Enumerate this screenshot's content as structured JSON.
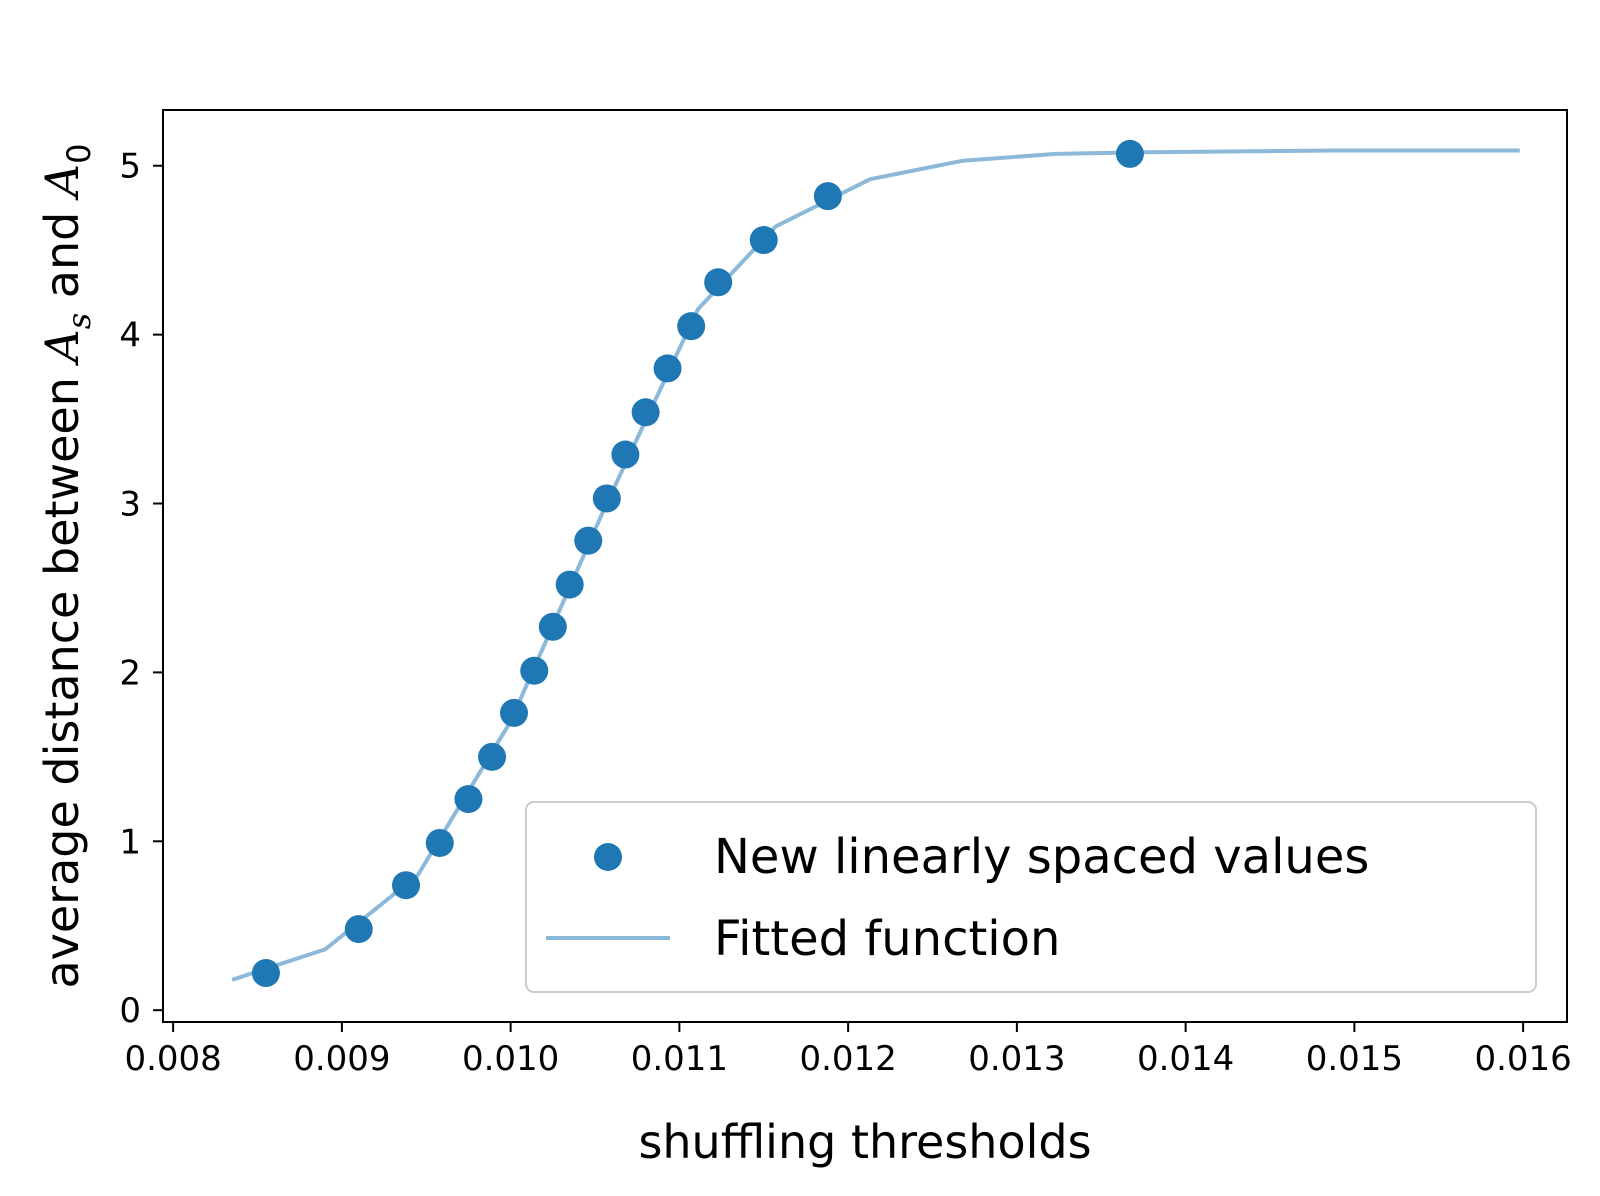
{
  "chart_data": {
    "type": "scatter",
    "xlabel": "shuffling thresholds",
    "ylabel": {
      "prefix": "average distance between ",
      "var1": "A",
      "sub1": "s",
      "middle": " and ",
      "var2": "A",
      "sub2": "0"
    },
    "xlim": [
      0.00794,
      0.01626
    ],
    "ylim": [
      -0.07,
      5.33
    ],
    "xticks": [
      0.008,
      0.009,
      0.01,
      0.011,
      0.012,
      0.013,
      0.014,
      0.015,
      0.016
    ],
    "xtick_labels": [
      "0.008",
      "0.009",
      "0.010",
      "0.011",
      "0.012",
      "0.013",
      "0.014",
      "0.015",
      "0.016"
    ],
    "yticks": [
      0,
      1,
      2,
      3,
      4,
      5
    ],
    "ytick_labels": [
      "0",
      "1",
      "2",
      "3",
      "4",
      "5"
    ],
    "grid": false,
    "legend_position": "lower-right",
    "colors": {
      "points": "#1f77b4",
      "line": "#8cb8d9",
      "axes": "#000000",
      "legend_border": "#cccccc"
    },
    "series": [
      {
        "name": "New linearly spaced values",
        "kind": "scatter",
        "x": [
          0.00855,
          0.0091,
          0.00938,
          0.00958,
          0.00975,
          0.00989,
          0.01002,
          0.01014,
          0.01025,
          0.01035,
          0.01046,
          0.01057,
          0.01068,
          0.0108,
          0.01093,
          0.01107,
          0.01123,
          0.0115,
          0.01188,
          0.01367
        ],
        "y": [
          0.22,
          0.48,
          0.74,
          0.99,
          1.25,
          1.5,
          1.76,
          2.01,
          2.27,
          2.52,
          2.78,
          3.03,
          3.29,
          3.54,
          3.8,
          4.05,
          4.31,
          4.56,
          4.82,
          5.07
        ]
      },
      {
        "name": "Fitted function",
        "kind": "line",
        "x": [
          0.00835,
          0.0089,
          0.00945,
          0.01,
          0.01056,
          0.01111,
          0.01157,
          0.01213,
          0.01268,
          0.01323,
          0.01378,
          0.01433,
          0.01488,
          0.01543,
          0.01598
        ],
        "y": [
          0.18,
          0.36,
          0.8,
          1.71,
          2.98,
          4.15,
          4.64,
          4.92,
          5.03,
          5.07,
          5.08,
          5.085,
          5.09,
          5.09,
          5.09
        ]
      }
    ]
  }
}
